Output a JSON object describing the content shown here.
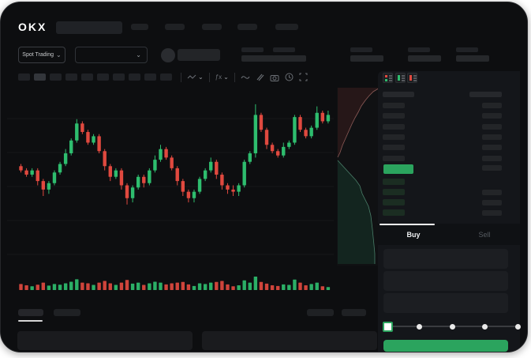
{
  "header": {
    "logo": "OKX"
  },
  "market_bar": {
    "selector_label": "Spot Trading"
  },
  "trade_panel": {
    "tabs": {
      "buy": "Buy",
      "sell": "Sell"
    },
    "slider_stops": 5,
    "input_count": 3
  },
  "order_book": {
    "view_toggle_icons": [
      "book-both-icon",
      "book-bids-icon",
      "book-asks-icon"
    ],
    "ask_rows": 6,
    "bid_rows": 4,
    "bid_right_bars": [
      false,
      true,
      true,
      true
    ],
    "last_price_highlight": "green"
  },
  "colors": {
    "window_bg": "#0d0e10",
    "panel_bg": "#14161a",
    "accent_green": "#2BA45E",
    "candle_up": "#2EBD6E",
    "candle_down": "#E0493F",
    "depth_ask_line": "#d98a84",
    "depth_bid_line": "#6fbf9f",
    "tab_active_text": "#eef0f2",
    "tab_inactive_text": "#565b61"
  },
  "chart_data": [
    {
      "type": "candlestick",
      "title": "",
      "xlabel": "",
      "ylabel": "",
      "note": "skeleton chart, no axis labels visible; prices in relative units 0-100",
      "grid": "horizontal-only",
      "candles_ohlc": [
        [
          64,
          65,
          61,
          62
        ],
        [
          62,
          63,
          59,
          60
        ],
        [
          60,
          63,
          59,
          62
        ],
        [
          62,
          63,
          55,
          57
        ],
        [
          57,
          58,
          50,
          53
        ],
        [
          53,
          57,
          51,
          56
        ],
        [
          56,
          62,
          55,
          61
        ],
        [
          61,
          66,
          60,
          65
        ],
        [
          65,
          72,
          64,
          70
        ],
        [
          70,
          77,
          69,
          76
        ],
        [
          76,
          86,
          75,
          84
        ],
        [
          84,
          85,
          79,
          80
        ],
        [
          80,
          81,
          74,
          75
        ],
        [
          75,
          79,
          74,
          78
        ],
        [
          78,
          79,
          70,
          71
        ],
        [
          71,
          72,
          62,
          64
        ],
        [
          64,
          65,
          57,
          59
        ],
        [
          59,
          63,
          58,
          62
        ],
        [
          62,
          63,
          53,
          55
        ],
        [
          55,
          56,
          46,
          49
        ],
        [
          49,
          55,
          47,
          54
        ],
        [
          54,
          60,
          53,
          59
        ],
        [
          59,
          60,
          54,
          56
        ],
        [
          56,
          63,
          55,
          62
        ],
        [
          62,
          69,
          61,
          67
        ],
        [
          67,
          74,
          66,
          72
        ],
        [
          72,
          73,
          67,
          68
        ],
        [
          68,
          69,
          62,
          63
        ],
        [
          63,
          64,
          55,
          57
        ],
        [
          57,
          58,
          50,
          52
        ],
        [
          52,
          53,
          47,
          49
        ],
        [
          49,
          53,
          47,
          52
        ],
        [
          52,
          59,
          51,
          58
        ],
        [
          58,
          63,
          57,
          62
        ],
        [
          62,
          68,
          61,
          66
        ],
        [
          66,
          67,
          58,
          60
        ],
        [
          60,
          61,
          53,
          55
        ],
        [
          55,
          56,
          51,
          53
        ],
        [
          53,
          55,
          50,
          52
        ],
        [
          52,
          56,
          50,
          55
        ],
        [
          55,
          67,
          54,
          66
        ],
        [
          66,
          71,
          65,
          70
        ],
        [
          70,
          93,
          68,
          88
        ],
        [
          88,
          89,
          80,
          81
        ],
        [
          81,
          82,
          72,
          74
        ],
        [
          74,
          75,
          70,
          71
        ],
        [
          71,
          72,
          68,
          69
        ],
        [
          69,
          75,
          68,
          73
        ],
        [
          73,
          76,
          72,
          75
        ],
        [
          75,
          88,
          74,
          87
        ],
        [
          87,
          88,
          80,
          81
        ],
        [
          81,
          82,
          77,
          78
        ],
        [
          78,
          83,
          77,
          82
        ],
        [
          82,
          92,
          81,
          89
        ],
        [
          89,
          90,
          84,
          85
        ],
        [
          85,
          90,
          84,
          88
        ]
      ],
      "volume": [
        45,
        35,
        28,
        40,
        55,
        33,
        45,
        40,
        50,
        62,
        80,
        55,
        50,
        38,
        55,
        68,
        50,
        38,
        55,
        75,
        48,
        55,
        38,
        50,
        62,
        55,
        42,
        50,
        55,
        60,
        42,
        30,
        50,
        45,
        55,
        60,
        68,
        42,
        28,
        35,
        72,
        55,
        100,
        60,
        48,
        35,
        30,
        42,
        38,
        78,
        55,
        35,
        45,
        55,
        28,
        22
      ]
    },
    {
      "type": "area",
      "name": "market-depth (vertical)",
      "asks_line": [
        [
          427,
          196
        ],
        [
          430,
          190
        ],
        [
          433,
          181
        ],
        [
          437,
          172
        ],
        [
          441,
          163
        ],
        [
          445,
          154
        ],
        [
          449,
          146
        ],
        [
          453,
          139
        ],
        [
          457,
          131
        ],
        [
          462,
          124
        ],
        [
          467,
          118
        ],
        [
          472,
          113
        ],
        [
          477,
          110
        ],
        [
          479,
          109
        ]
      ],
      "bids_line": [
        [
          427,
          200
        ],
        [
          450,
          225
        ],
        [
          455,
          232
        ],
        [
          458,
          242
        ],
        [
          466,
          258
        ],
        [
          469,
          270
        ],
        [
          471,
          287
        ],
        [
          473,
          307
        ],
        [
          474,
          318
        ],
        [
          474,
          331
        ]
      ]
    }
  ]
}
